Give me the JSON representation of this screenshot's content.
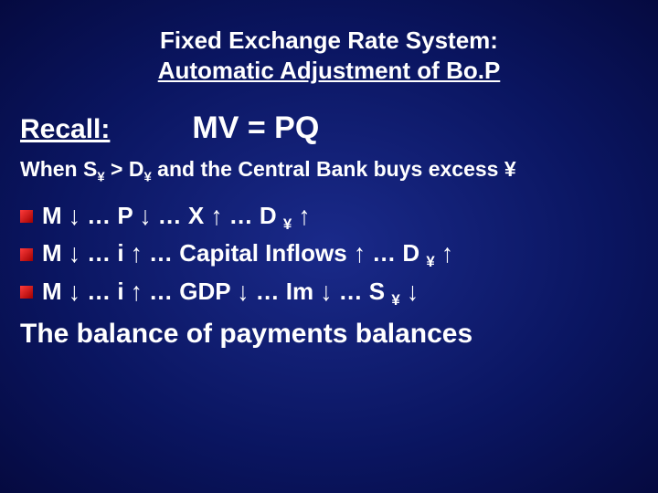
{
  "colors": {
    "background_center": "#1a2a8a",
    "background_edge": "#050a40",
    "text": "#ffffff",
    "bullet_red_light": "#ff3b3b",
    "bullet_red_dark": "#a00000"
  },
  "typography": {
    "title_fontsize": 26,
    "recall_fontsize": 30,
    "equation_fontsize": 34,
    "when_fontsize": 23,
    "bullet_fontsize": 26,
    "conclusion_fontsize": 30,
    "font_family": "Arial"
  },
  "title": {
    "line1": "Fixed Exchange Rate System:",
    "line2": "Automatic Adjustment of Bo.P"
  },
  "recall": {
    "label": "Recall:",
    "equation": "MV = PQ"
  },
  "when_line": {
    "prefix": "When S",
    "sub1": "¥",
    "mid": " > D",
    "sub2": "¥",
    "suffix": " and the Central Bank buys excess ¥"
  },
  "arrows": {
    "down": "↓",
    "up": "↑"
  },
  "bullets": [
    {
      "segments": [
        {
          "t": "M "
        },
        {
          "a": "down"
        },
        {
          "t": " … P "
        },
        {
          "a": "down"
        },
        {
          "t": " … X "
        },
        {
          "a": "up"
        },
        {
          "t": " … D "
        },
        {
          "sub": "¥"
        },
        {
          "t": " "
        },
        {
          "a": "up"
        }
      ]
    },
    {
      "segments": [
        {
          "t": "M "
        },
        {
          "a": "down"
        },
        {
          "t": " … i "
        },
        {
          "a": "up"
        },
        {
          "t": " … Capital Inflows "
        },
        {
          "a": "up"
        },
        {
          "t": " … D "
        },
        {
          "sub": "¥"
        },
        {
          "t": " "
        },
        {
          "a": "up"
        }
      ]
    },
    {
      "segments": [
        {
          "t": "M "
        },
        {
          "a": "down"
        },
        {
          "t": " … i "
        },
        {
          "a": "up"
        },
        {
          "t": " … GDP "
        },
        {
          "a": "down"
        },
        {
          "t": " … Im "
        },
        {
          "a": "down"
        },
        {
          "t": " … S "
        },
        {
          "sub": "¥"
        },
        {
          "t": " "
        },
        {
          "a": "down"
        }
      ]
    }
  ],
  "conclusion": "The balance of payments balances"
}
